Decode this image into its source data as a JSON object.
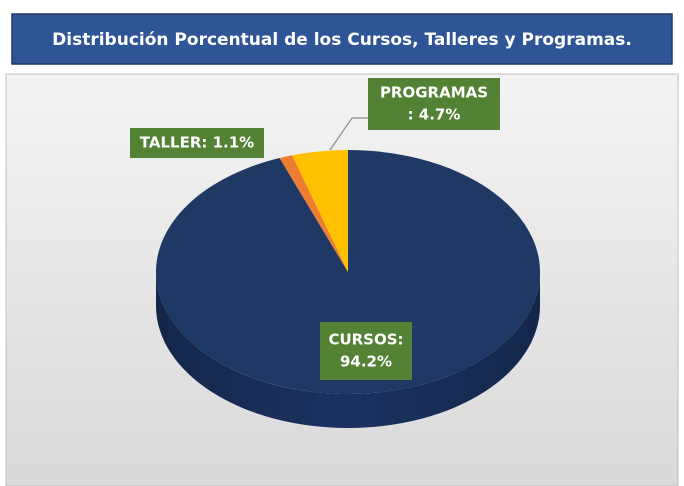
{
  "chart_data": {
    "type": "pie",
    "title": "Distribución Porcentual de los Cursos, Talleres y Programas.",
    "values": [
      94.2,
      1.1,
      4.7
    ],
    "value_labels": [
      [
        "CURSOS:",
        "94.2%"
      ],
      [
        "TALLER: 1.1%"
      ],
      [
        "PROGRAMAS",
        ": 4.7%"
      ]
    ],
    "colors": [
      "#1f3864",
      "#ed7d31",
      "#ffc000"
    ],
    "label_color": "#548235"
  }
}
